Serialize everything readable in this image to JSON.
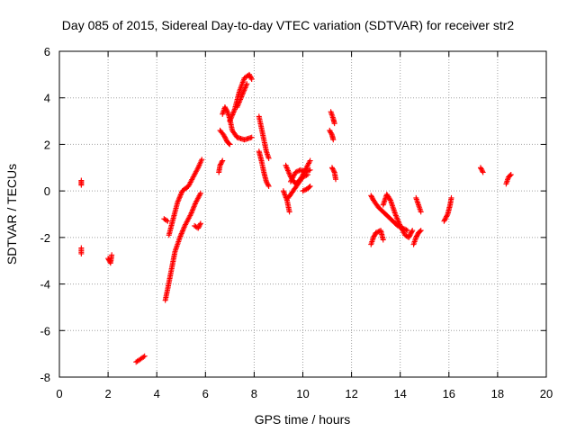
{
  "chart_data": {
    "type": "scatter",
    "title": "Day 085 of 2015, Sidereal Day-to-day VTEC variation (SDTVAR) for receiver str2",
    "xlabel": "GPS time / hours",
    "ylabel": "SDTVAR / TECUs",
    "xlim": [
      0,
      20
    ],
    "ylim": [
      -8,
      6
    ],
    "xticks": [
      0,
      2,
      4,
      6,
      8,
      10,
      12,
      14,
      16,
      18,
      20
    ],
    "yticks": [
      -8,
      -6,
      -4,
      -2,
      0,
      2,
      4,
      6
    ],
    "grid": true,
    "marker": "+",
    "color": "#ff0000",
    "series": [
      {
        "name": "SDTVAR",
        "segments": [
          [
            [
              0.9,
              0.25
            ],
            [
              0.9,
              0.45
            ]
          ],
          [
            [
              0.9,
              -2.7
            ],
            [
              0.9,
              -2.45
            ]
          ],
          [
            [
              2.0,
              -2.9
            ],
            [
              2.1,
              -3.1
            ],
            [
              2.15,
              -2.75
            ]
          ],
          [
            [
              3.15,
              -7.35
            ],
            [
              3.3,
              -7.25
            ],
            [
              3.5,
              -7.1
            ]
          ],
          [
            [
              4.3,
              -1.2
            ],
            [
              4.45,
              -1.3
            ]
          ],
          [
            [
              4.35,
              -4.7
            ],
            [
              4.45,
              -4.2
            ],
            [
              4.6,
              -3.4
            ],
            [
              4.75,
              -2.6
            ],
            [
              4.95,
              -2.0
            ],
            [
              5.15,
              -1.5
            ],
            [
              5.4,
              -1.0
            ],
            [
              5.6,
              -0.5
            ],
            [
              5.8,
              -0.1
            ]
          ],
          [
            [
              4.5,
              -1.9
            ],
            [
              4.65,
              -1.3
            ],
            [
              4.85,
              -0.5
            ],
            [
              5.05,
              0.0
            ],
            [
              5.3,
              0.2
            ],
            [
              5.5,
              0.6
            ],
            [
              5.7,
              1.0
            ],
            [
              5.85,
              1.35
            ]
          ],
          [
            [
              5.55,
              -1.5
            ],
            [
              5.7,
              -1.6
            ],
            [
              5.8,
              -1.4
            ]
          ],
          [
            [
              6.55,
              0.8
            ],
            [
              6.6,
              1.1
            ],
            [
              6.7,
              1.3
            ]
          ],
          [
            [
              6.6,
              2.6
            ],
            [
              6.75,
              2.4
            ],
            [
              6.9,
              2.1
            ],
            [
              7.0,
              2.0
            ]
          ],
          [
            [
              6.7,
              3.3
            ],
            [
              6.8,
              3.6
            ],
            [
              6.9,
              3.4
            ],
            [
              7.0,
              3.1
            ],
            [
              7.1,
              2.6
            ],
            [
              7.3,
              2.3
            ],
            [
              7.6,
              2.2
            ],
            [
              7.9,
              2.3
            ]
          ],
          [
            [
              7.0,
              3.0
            ],
            [
              7.2,
              3.5
            ],
            [
              7.4,
              4.3
            ],
            [
              7.6,
              4.85
            ],
            [
              7.8,
              5.0
            ],
            [
              7.9,
              4.8
            ]
          ],
          [
            [
              7.3,
              3.6
            ],
            [
              7.5,
              4.1
            ],
            [
              7.7,
              4.6
            ]
          ],
          [
            [
              8.2,
              3.2
            ],
            [
              8.3,
              2.7
            ],
            [
              8.4,
              2.2
            ],
            [
              8.5,
              1.7
            ],
            [
              8.6,
              1.4
            ]
          ],
          [
            [
              8.2,
              1.7
            ],
            [
              8.3,
              1.3
            ],
            [
              8.4,
              0.8
            ],
            [
              8.5,
              0.4
            ],
            [
              8.6,
              0.2
            ]
          ],
          [
            [
              9.2,
              0.0
            ],
            [
              9.35,
              -0.4
            ],
            [
              9.45,
              -0.9
            ]
          ],
          [
            [
              9.3,
              1.1
            ],
            [
              9.5,
              0.6
            ],
            [
              9.7,
              0.3
            ],
            [
              9.9,
              0.5
            ],
            [
              10.1,
              0.9
            ],
            [
              10.3,
              1.3
            ]
          ],
          [
            [
              9.4,
              -0.3
            ],
            [
              9.6,
              0.0
            ],
            [
              9.8,
              0.3
            ],
            [
              10.0,
              0.6
            ],
            [
              10.2,
              0.7
            ]
          ],
          [
            [
              9.5,
              0.4
            ],
            [
              9.7,
              0.8
            ],
            [
              9.9,
              0.9
            ],
            [
              10.1,
              0.8
            ],
            [
              10.3,
              0.9
            ]
          ],
          [
            [
              10.0,
              0.0
            ],
            [
              10.2,
              0.1
            ],
            [
              10.3,
              0.2
            ]
          ],
          [
            [
              11.1,
              2.6
            ],
            [
              11.2,
              2.4
            ],
            [
              11.25,
              2.2
            ]
          ],
          [
            [
              11.15,
              3.4
            ],
            [
              11.25,
              3.1
            ],
            [
              11.3,
              2.9
            ]
          ],
          [
            [
              11.2,
              1.0
            ],
            [
              11.3,
              0.8
            ],
            [
              11.35,
              0.5
            ]
          ],
          [
            [
              12.8,
              -2.3
            ],
            [
              12.9,
              -2.0
            ],
            [
              13.0,
              -1.8
            ],
            [
              13.2,
              -1.7
            ],
            [
              13.3,
              -2.1
            ]
          ],
          [
            [
              12.8,
              -0.2
            ],
            [
              12.9,
              -0.4
            ],
            [
              13.1,
              -0.7
            ],
            [
              13.3,
              -0.9
            ],
            [
              13.5,
              -1.1
            ],
            [
              13.7,
              -1.3
            ],
            [
              13.9,
              -1.5
            ],
            [
              14.1,
              -1.6
            ],
            [
              14.3,
              -1.7
            ]
          ],
          [
            [
              13.3,
              -0.6
            ],
            [
              13.45,
              -0.15
            ],
            [
              13.6,
              -0.4
            ],
            [
              13.8,
              -1.0
            ],
            [
              14.0,
              -1.5
            ],
            [
              14.2,
              -1.9
            ],
            [
              14.35,
              -2.0
            ],
            [
              14.5,
              -1.7
            ]
          ],
          [
            [
              14.55,
              -2.3
            ],
            [
              14.65,
              -2.0
            ],
            [
              14.75,
              -1.8
            ],
            [
              14.85,
              -1.7
            ]
          ],
          [
            [
              14.65,
              -0.3
            ],
            [
              14.75,
              -0.6
            ],
            [
              14.85,
              -0.9
            ]
          ],
          [
            [
              15.8,
              -1.3
            ],
            [
              15.95,
              -1.0
            ],
            [
              16.05,
              -0.6
            ],
            [
              16.1,
              -0.3
            ]
          ],
          [
            [
              17.3,
              1.0
            ],
            [
              17.4,
              0.8
            ]
          ],
          [
            [
              18.35,
              0.3
            ],
            [
              18.45,
              0.6
            ],
            [
              18.55,
              0.7
            ]
          ]
        ]
      }
    ]
  }
}
